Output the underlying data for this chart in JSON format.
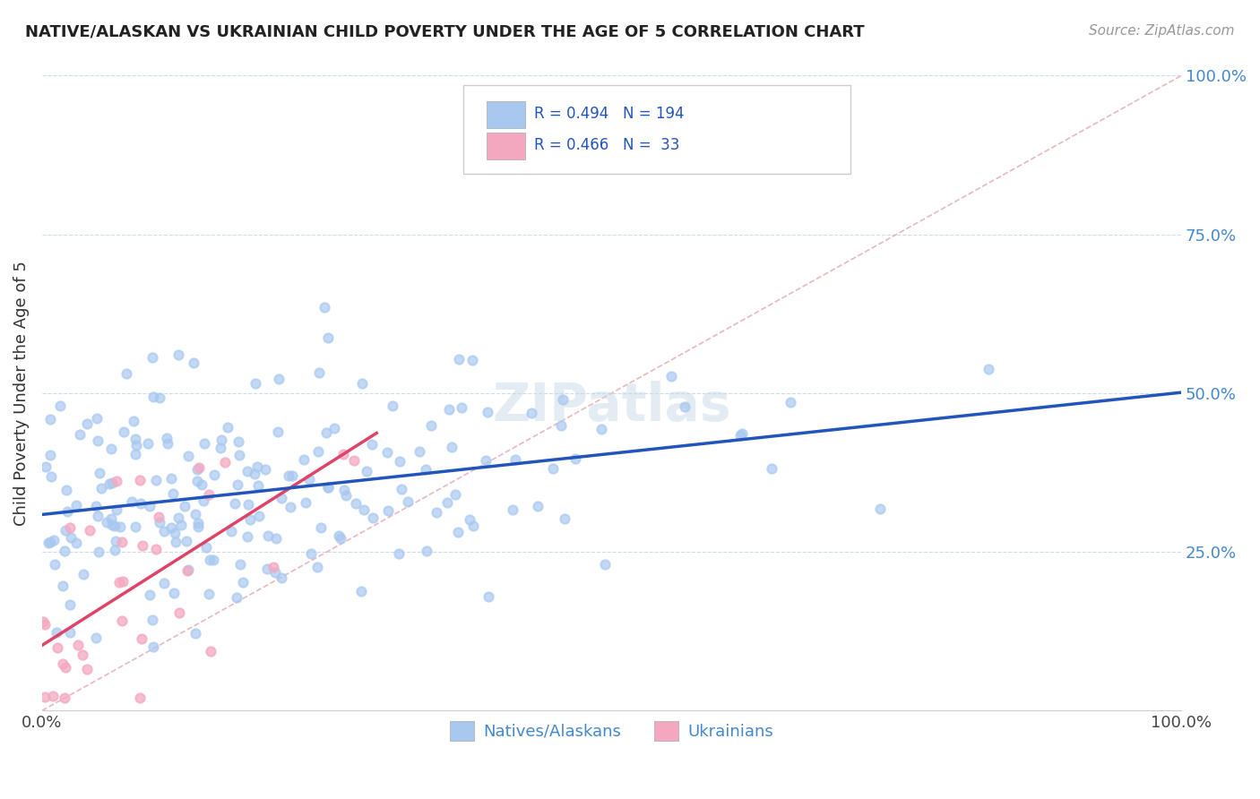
{
  "title": "NATIVE/ALASKAN VS UKRAINIAN CHILD POVERTY UNDER THE AGE OF 5 CORRELATION CHART",
  "source": "Source: ZipAtlas.com",
  "ylabel": "Child Poverty Under the Age of 5",
  "xlim": [
    0.0,
    1.0
  ],
  "ylim": [
    0.0,
    1.0
  ],
  "native_color": "#a8c8f0",
  "ukrainian_color": "#f4a8c0",
  "native_line_color": "#2255bb",
  "ukrainian_line_color": "#dd4466",
  "diagonal_color": "#e8b0b8",
  "R_native": 0.494,
  "N_native": 194,
  "R_ukrainian": 0.466,
  "N_ukrainian": 33,
  "legend_label_native": "Natives/Alaskans",
  "legend_label_ukrainian": "Ukrainians",
  "background_color": "#ffffff",
  "grid_color": "#c8d8e8",
  "ytick_color": "#4488cc",
  "title_color": "#222222",
  "watermark_color": "#c8d8e8"
}
